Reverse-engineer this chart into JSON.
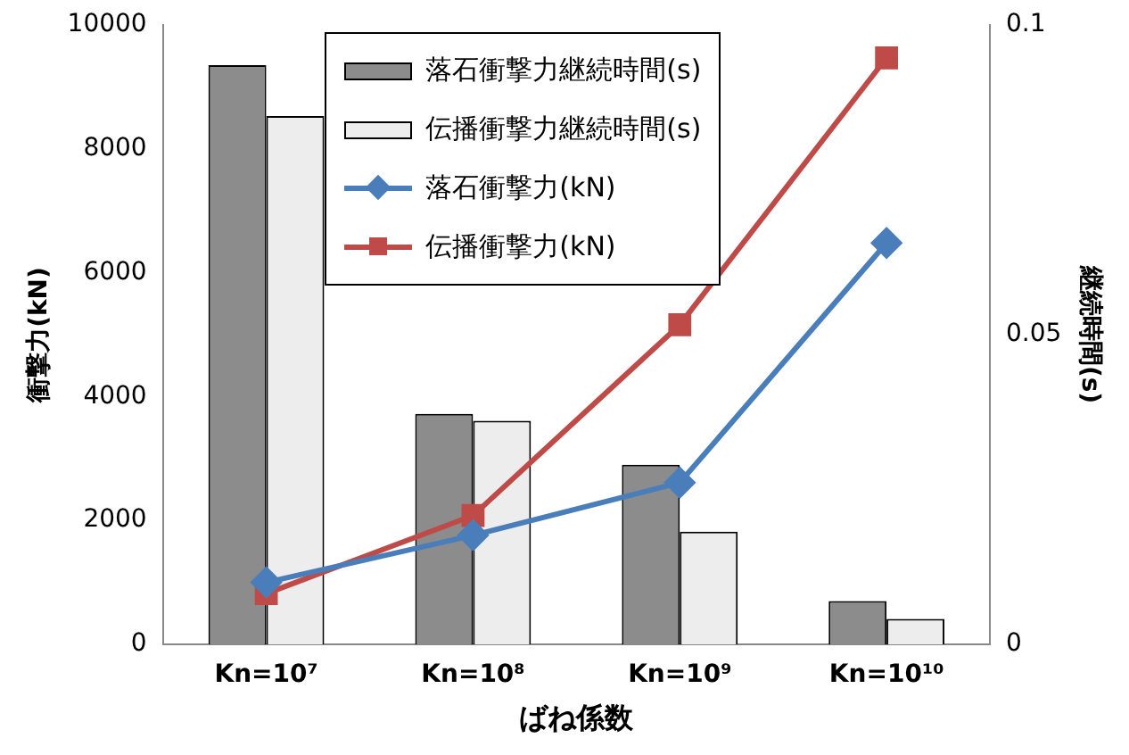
{
  "chart_data": {
    "type": "bar",
    "xlabel": "ばね係数",
    "ylabel": "衝撃力(kN)",
    "y2label": "継続時間(s)",
    "categories": [
      "Kn=10⁷",
      "Kn=10⁸",
      "Kn=10⁹",
      "Kn=10¹⁰"
    ],
    "series": [
      {
        "name": "落石衝撃力継続時間(s)",
        "axis": "y2",
        "color": "#8c8c8c",
        "values": [
          0.0935,
          0.0372,
          0.029,
          0.007
        ]
      },
      {
        "name": "伝播衝撃力継続時間(s)",
        "axis": "y2",
        "color": "#ededed",
        "values": [
          0.0853,
          0.0361,
          0.0182,
          0.0041
        ]
      },
      {
        "name": "落石衝撃力(kN)",
        "type": "line",
        "color": "#4a7ebb",
        "marker": "diamond",
        "values": [
          1000,
          1760,
          2610,
          6480
        ]
      },
      {
        "name": "伝播衝撃力(kN)",
        "type": "line",
        "color": "#be4b48",
        "marker": "square",
        "values": [
          820,
          2080,
          5160,
          9470
        ]
      }
    ],
    "ylim": [
      0,
      10000
    ],
    "yticks": [
      0,
      2000,
      4000,
      6000,
      8000,
      10000
    ],
    "y2lim": [
      0,
      0.1
    ],
    "y2ticks": [
      0,
      0.05,
      0.1
    ],
    "grid": false,
    "legend": "top"
  }
}
